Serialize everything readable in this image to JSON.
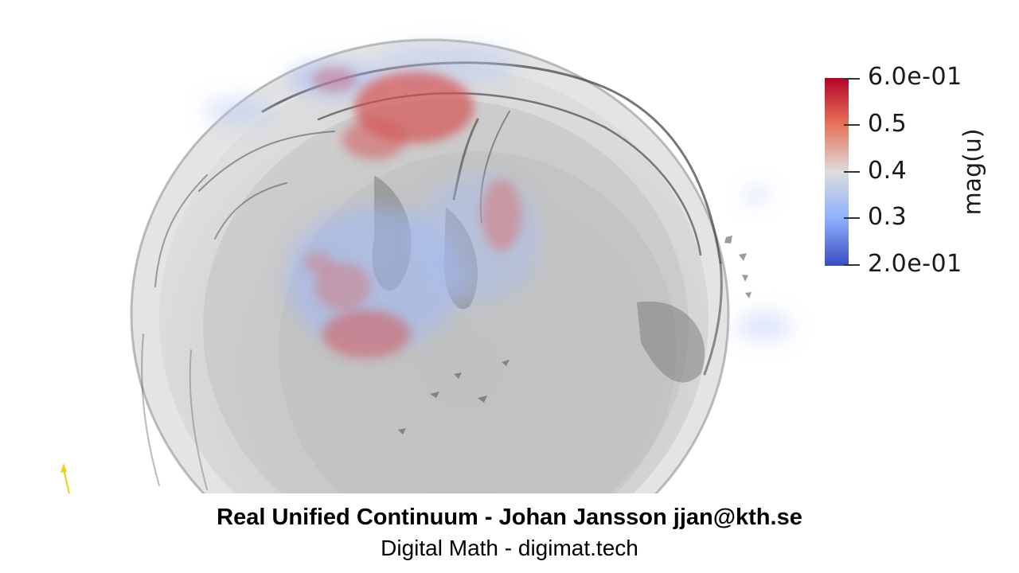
{
  "colorbar": {
    "title": "mag(u)",
    "labels": [
      "6.0e-01",
      "0.5",
      "0.4",
      "0.3",
      "2.0e-01"
    ],
    "colors": {
      "max": "#b40426",
      "mid": "#dddcdc",
      "min": "#3b4cc0"
    }
  },
  "caption": {
    "line1": "Real Unified Continuum - Johan Jansson jjan@kth.se",
    "line2": "Digital Math - digimat.tech"
  },
  "scene": {
    "object": "sphere-surface-render",
    "axis_color": "#e8d21a"
  }
}
